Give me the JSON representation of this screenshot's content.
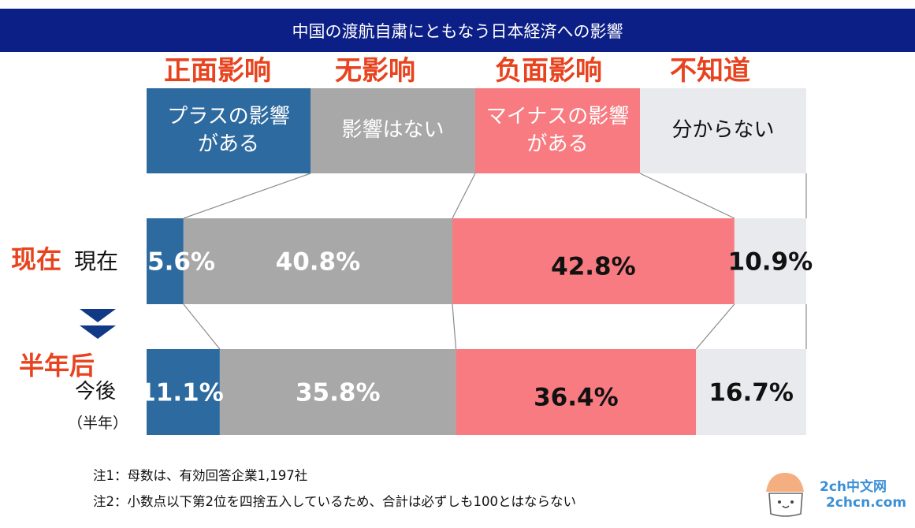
{
  "title": "中国の渡航自粛にともなう日本経済への影響",
  "annotations_cn": [
    "正面影响",
    "无影响",
    "负面影响",
    "不知道"
  ],
  "categories": [
    "プラスの影響\nがある",
    "影響はない",
    "マイナスの影響\nがある",
    "分からない"
  ],
  "colors": {
    "positive": "#2d6aa0",
    "none": "#a8a8a8",
    "negative": "#f77b80",
    "unknown": "#e9eaee",
    "cn_annotation": "#e8431f",
    "title_bar": "#0c1f86",
    "arrow": "#103a86"
  },
  "rows": {
    "current": {
      "cn_label": "现在",
      "label": "現在"
    },
    "future": {
      "cn_label": "半年后",
      "label": "今後",
      "sublabel": "（半年）"
    }
  },
  "chart_data": {
    "type": "bar",
    "orientation": "horizontal",
    "stacked": "100%",
    "title": "中国の渡航自粛にともなう日本経済への影響",
    "categories": [
      "現在",
      "今後（半年）"
    ],
    "series": [
      {
        "name": "プラスの影響がある",
        "values": [
          5.6,
          11.1
        ]
      },
      {
        "name": "影響はない",
        "values": [
          40.8,
          35.8
        ]
      },
      {
        "name": "マイナスの影響がある",
        "values": [
          42.8,
          36.4
        ]
      },
      {
        "name": "分からない",
        "values": [
          10.9,
          16.7
        ]
      }
    ],
    "data_labels": [
      [
        "5.6%",
        "40.8%",
        "42.8%",
        "10.9%"
      ],
      [
        "11.1%",
        "35.8%",
        "36.4%",
        "16.7%"
      ]
    ],
    "xlim": [
      0,
      100
    ],
    "legend": "top"
  },
  "notes": [
    "注1：母数は、有効回答企業1,197社",
    "注2：小数点以下第2位を四捨五入しているため、合計は必ずしも100とはならない"
  ],
  "watermark": {
    "line1": "2ch中文网",
    "line2": "2chcn.com"
  }
}
